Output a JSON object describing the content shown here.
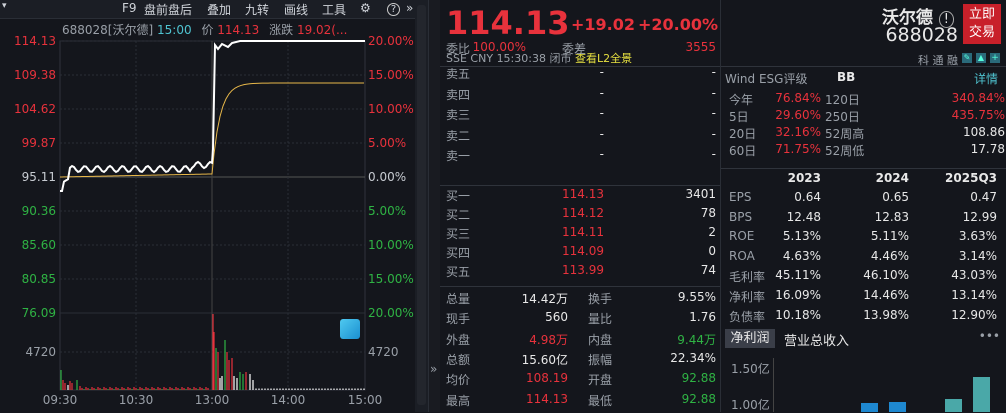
{
  "toolbar": {
    "items": [
      "F9",
      "盘前盘后",
      "叠加",
      "九转",
      "画线",
      "工具"
    ],
    "settings_icon": "gear-icon",
    "help_icon": "question-icon",
    "more_icon": "double-chevron-right-icon"
  },
  "chart": {
    "header": {
      "code": "688028[沃尔德]",
      "time": "15:00",
      "price_label": "价",
      "price": "114.13",
      "change_label": "涨跌",
      "change": "19.02(..."
    },
    "price_ticks": [
      "114.13",
      "109.38",
      "104.62",
      "99.87",
      "95.11",
      "90.36",
      "85.60",
      "80.85",
      "76.09"
    ],
    "pct_ticks": [
      "20.00%",
      "15.00%",
      "10.00%",
      "5.00%",
      "0.00%",
      "5.00%",
      "10.00%",
      "15.00%",
      "20.00%"
    ],
    "volume_tick": "4720",
    "time_ticks": [
      "09:30",
      "10:30",
      "13:00",
      "14:00",
      "15:00"
    ],
    "colors": {
      "up": "#e8323c",
      "down": "#2fb344",
      "price_line": "#ffffff",
      "avg_line": "#e8b84a"
    }
  },
  "quote": {
    "price": "114.13",
    "change": "+19.02",
    "change_pct": "+20.00%",
    "exchange": "SSE",
    "currency": "CNY",
    "time": "15:30:38",
    "status": "闭市",
    "l2_link": "查看L2全景"
  },
  "order_book": {
    "ratio": {
      "label": "委比",
      "value": "100.00%",
      "diff_label": "委差",
      "diff": "3555"
    },
    "asks": [
      {
        "label": "卖五",
        "price": "-",
        "vol": "-"
      },
      {
        "label": "卖四",
        "price": "-",
        "vol": "-"
      },
      {
        "label": "卖三",
        "price": "-",
        "vol": "-"
      },
      {
        "label": "卖二",
        "price": "-",
        "vol": "-"
      },
      {
        "label": "卖一",
        "price": "-",
        "vol": "-"
      }
    ],
    "bids": [
      {
        "label": "买一",
        "price": "114.13",
        "vol": "3401"
      },
      {
        "label": "买二",
        "price": "114.12",
        "vol": "78"
      },
      {
        "label": "买三",
        "price": "114.11",
        "vol": "2"
      },
      {
        "label": "买四",
        "price": "114.09",
        "vol": "0"
      },
      {
        "label": "买五",
        "price": "113.99",
        "vol": "74"
      }
    ]
  },
  "stats": [
    {
      "l1": "总量",
      "v1": "14.42万",
      "c1": "white",
      "l2": "换手",
      "v2": "9.55%",
      "c2": "white"
    },
    {
      "l1": "现手",
      "v1": "560",
      "c1": "white",
      "l2": "量比",
      "v2": "1.76",
      "c2": "white"
    },
    {
      "l1": "外盘",
      "v1": "4.98万",
      "c1": "red",
      "l2": "内盘",
      "v2": "9.44万",
      "c2": "green"
    },
    {
      "l1": "总额",
      "v1": "15.60亿",
      "c1": "white",
      "l2": "振幅",
      "v2": "22.34%",
      "c2": "white"
    },
    {
      "l1": "均价",
      "v1": "108.19",
      "c1": "red",
      "l2": "开盘",
      "v2": "92.88",
      "c2": "green"
    },
    {
      "l1": "最高",
      "v1": "114.13",
      "c1": "red",
      "l2": "最低",
      "v2": "92.88",
      "c2": "green"
    }
  ],
  "stock": {
    "name": "沃尔德",
    "code": "688028",
    "trade_button": "立即交易",
    "tags": [
      "科",
      "通",
      "融"
    ]
  },
  "esg": {
    "label": "Wind ESG评级",
    "rating": "BB",
    "detail": "详情"
  },
  "returns": [
    {
      "l1": "今年",
      "v1": "76.84%",
      "l2": "120日",
      "v2": "340.84%"
    },
    {
      "l1": "5日",
      "v1": "29.60%",
      "l2": "250日",
      "v2": "435.75%"
    },
    {
      "l1": "20日",
      "v1": "32.16%",
      "l2": "52周高",
      "v2": "108.86",
      "w2": true
    },
    {
      "l1": "60日",
      "v1": "71.75%",
      "l2": "52周低",
      "v2": "17.78",
      "w2": true
    }
  ],
  "financials": {
    "years": [
      "2023",
      "2024",
      "2025Q3"
    ],
    "rows": [
      {
        "label": "EPS",
        "values": [
          "0.64",
          "0.65",
          "0.47"
        ]
      },
      {
        "label": "BPS",
        "values": [
          "12.48",
          "12.83",
          "12.99"
        ]
      },
      {
        "label": "ROE",
        "values": [
          "5.13%",
          "5.11%",
          "3.63%"
        ]
      },
      {
        "label": "ROA",
        "values": [
          "4.63%",
          "4.46%",
          "3.14%"
        ]
      },
      {
        "label": "毛利率",
        "values": [
          "45.11%",
          "46.10%",
          "43.03%"
        ]
      },
      {
        "label": "净利率",
        "values": [
          "16.09%",
          "14.46%",
          "13.14%"
        ]
      },
      {
        "label": "负债率",
        "values": [
          "10.18%",
          "13.98%",
          "12.90%"
        ]
      }
    ]
  },
  "mini_chart": {
    "tabs": [
      "净利润",
      "营业总收入"
    ],
    "active_tab": 0,
    "more": "•••",
    "y_ticks": [
      "1.50亿",
      "1.00亿"
    ]
  }
}
